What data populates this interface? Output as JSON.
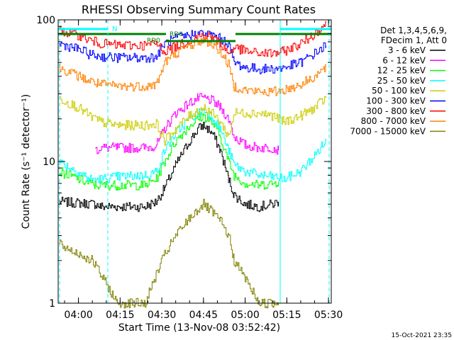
{
  "chart_data": {
    "type": "line",
    "title": "RHESSI Observing Summary Count Rates",
    "xlabel": "Start Time (13-Nov-08 03:52:42)",
    "ylabel": "Count Rate (s⁻¹ detector⁻¹)",
    "yscale": "log",
    "ylim": [
      1,
      100
    ],
    "xlim": [
      "03:52:42",
      "05:31:00"
    ],
    "x_ticks": [
      "04:00",
      "04:15",
      "04:30",
      "04:45",
      "05:00",
      "05:15",
      "05:30"
    ],
    "y_ticks": [
      "1",
      "10",
      "100"
    ],
    "timestamp": "15-Oct-2021 23:35",
    "legend_header": [
      "Det 1,3,4,5,6,9,",
      "FDecim 1, Att 0"
    ],
    "legend_placement": "right",
    "annotations": {
      "n_label": "N",
      "rd0_label_1": "RD0",
      "rd0_label_2": "RD0"
    },
    "series": [
      {
        "name": "3 - 6 keV",
        "color": "#000000",
        "x": [
          "03:53",
          "04:06",
          "04:08",
          "04:14",
          "04:24",
          "04:28",
          "04:31",
          "04:35",
          "04:40",
          "04:43",
          "04:45",
          "04:48",
          "04:51",
          "04:54",
          "04:56",
          "05:00",
          "05:05",
          "05:10",
          "05:12"
        ],
        "y": [
          5.2,
          5.0,
          4.8,
          4.8,
          4.8,
          5.2,
          6.5,
          9.5,
          14,
          17,
          18,
          16,
          12,
          7.5,
          5.8,
          5.0,
          4.8,
          5.0,
          5.2
        ]
      },
      {
        "name": "6 - 12 keV",
        "color": "#ff00ff",
        "x": [
          "04:06",
          "04:08",
          "04:14",
          "04:24",
          "04:28",
          "04:31",
          "04:35",
          "04:40",
          "04:43",
          "04:45",
          "04:48",
          "04:51",
          "04:54",
          "04:56",
          "05:00",
          "05:05",
          "05:10",
          "05:12"
        ],
        "y": [
          12,
          12.5,
          12.5,
          12.5,
          13,
          17,
          22,
          26,
          28,
          28,
          27,
          24,
          20,
          15,
          13,
          12.5,
          12.5,
          12
        ]
      },
      {
        "name": "12 - 25 keV",
        "color": "#00ff00",
        "x": [
          "03:53",
          "04:04",
          "04:06",
          "04:14",
          "04:24",
          "04:28",
          "04:31",
          "04:35",
          "04:40",
          "04:43",
          "04:45",
          "04:48",
          "04:51",
          "04:54",
          "04:56",
          "05:00",
          "05:05",
          "05:10",
          "05:12"
        ],
        "y": [
          8.5,
          7.0,
          6.8,
          6.8,
          6.8,
          7.5,
          10,
          14,
          18,
          20,
          21,
          19,
          15,
          10,
          8,
          7,
          6.8,
          7,
          7.2
        ]
      },
      {
        "name": "25 - 50 keV",
        "color": "#00ffff",
        "x": [
          "03:53",
          "04:02",
          "04:04",
          "04:08",
          "04:14",
          "04:24",
          "04:28",
          "04:31",
          "04:35",
          "04:40",
          "04:43",
          "04:45",
          "04:48",
          "04:51",
          "04:54",
          "04:56",
          "05:00",
          "05:05",
          "05:10",
          "05:14",
          "05:20",
          "05:25",
          "05:29"
        ],
        "y": [
          10,
          8.0,
          7.5,
          7.5,
          7.8,
          8.0,
          8.5,
          12,
          16,
          20,
          22,
          23,
          21,
          17,
          12,
          9.5,
          8.5,
          8.0,
          7.8,
          7.5,
          8.5,
          11,
          14
        ]
      },
      {
        "name": "50 - 100 keV",
        "color": "#cccc00",
        "x": [
          "03:53",
          "04:00",
          "04:04",
          "04:08",
          "04:14",
          "04:24",
          "04:28",
          "04:31",
          "04:35",
          "04:40",
          "04:43",
          "04:45",
          "04:48",
          "04:51",
          "04:54",
          "04:56",
          "05:00",
          "05:05",
          "05:10",
          "05:14",
          "05:20",
          "05:25",
          "05:29"
        ],
        "y": [
          28,
          24,
          21,
          19,
          18,
          18,
          18.5,
          14,
          17,
          21,
          23,
          24,
          22,
          19,
          15,
          22,
          22,
          22,
          21,
          19,
          21,
          24,
          28
        ]
      },
      {
        "name": "100 - 300 keV",
        "color": "#0000ff",
        "x": [
          "03:53",
          "04:00",
          "04:04",
          "04:08",
          "04:14",
          "04:24",
          "04:28",
          "04:31",
          "04:35",
          "04:40",
          "04:43",
          "04:45",
          "04:48",
          "04:51",
          "04:54",
          "04:56",
          "05:00",
          "05:05",
          "05:10",
          "05:14",
          "05:20",
          "05:25",
          "05:29"
        ],
        "y": [
          68,
          62,
          57,
          55,
          54,
          54,
          55,
          68,
          74,
          78,
          80,
          80,
          78,
          74,
          68,
          50,
          46,
          45,
          45,
          46,
          50,
          58,
          66
        ]
      },
      {
        "name": "300 - 800 keV",
        "color": "#ff0000",
        "x": [
          "03:53",
          "04:00",
          "04:04",
          "04:08",
          "04:14",
          "04:24",
          "04:28",
          "04:31",
          "04:35",
          "04:40",
          "04:43",
          "04:45",
          "04:48",
          "04:51",
          "04:54",
          "04:56",
          "05:00",
          "05:05",
          "05:10",
          "05:14",
          "05:20",
          "05:25",
          "05:29"
        ],
        "y": [
          84,
          78,
          72,
          68,
          66,
          66,
          68,
          60,
          65,
          72,
          76,
          78,
          75,
          68,
          58,
          64,
          60,
          58,
          58,
          60,
          68,
          80,
          95
        ]
      },
      {
        "name": "800 - 7000 keV",
        "color": "#ff8000",
        "x": [
          "03:53",
          "04:00",
          "04:04",
          "04:08",
          "04:14",
          "04:24",
          "04:28",
          "04:31",
          "04:35",
          "04:40",
          "04:43",
          "04:45",
          "04:48",
          "04:51",
          "04:54",
          "04:56",
          "05:00",
          "05:05",
          "05:10",
          "05:14",
          "05:20",
          "05:25",
          "05:29"
        ],
        "y": [
          46,
          40,
          37,
          35,
          34,
          34,
          35,
          50,
          58,
          66,
          70,
          72,
          68,
          60,
          48,
          34,
          32,
          31,
          31,
          32,
          35,
          40,
          46
        ]
      },
      {
        "name": "7000 - 15000 keV",
        "color": "#808000",
        "x": [
          "03:53",
          "04:05",
          "04:14",
          "04:24",
          "04:28",
          "04:31",
          "04:35",
          "04:40",
          "04:43",
          "04:45",
          "04:48",
          "04:51",
          "04:54",
          "04:56",
          "05:00",
          "05:05",
          "05:10",
          "05:12"
        ],
        "y": [
          2.6,
          2.0,
          1.0,
          1.0,
          1.6,
          2.2,
          3.0,
          4.0,
          4.6,
          5.0,
          4.4,
          3.8,
          3.0,
          2.0,
          1.5,
          1.0,
          1.0,
          1.0
        ]
      }
    ]
  }
}
